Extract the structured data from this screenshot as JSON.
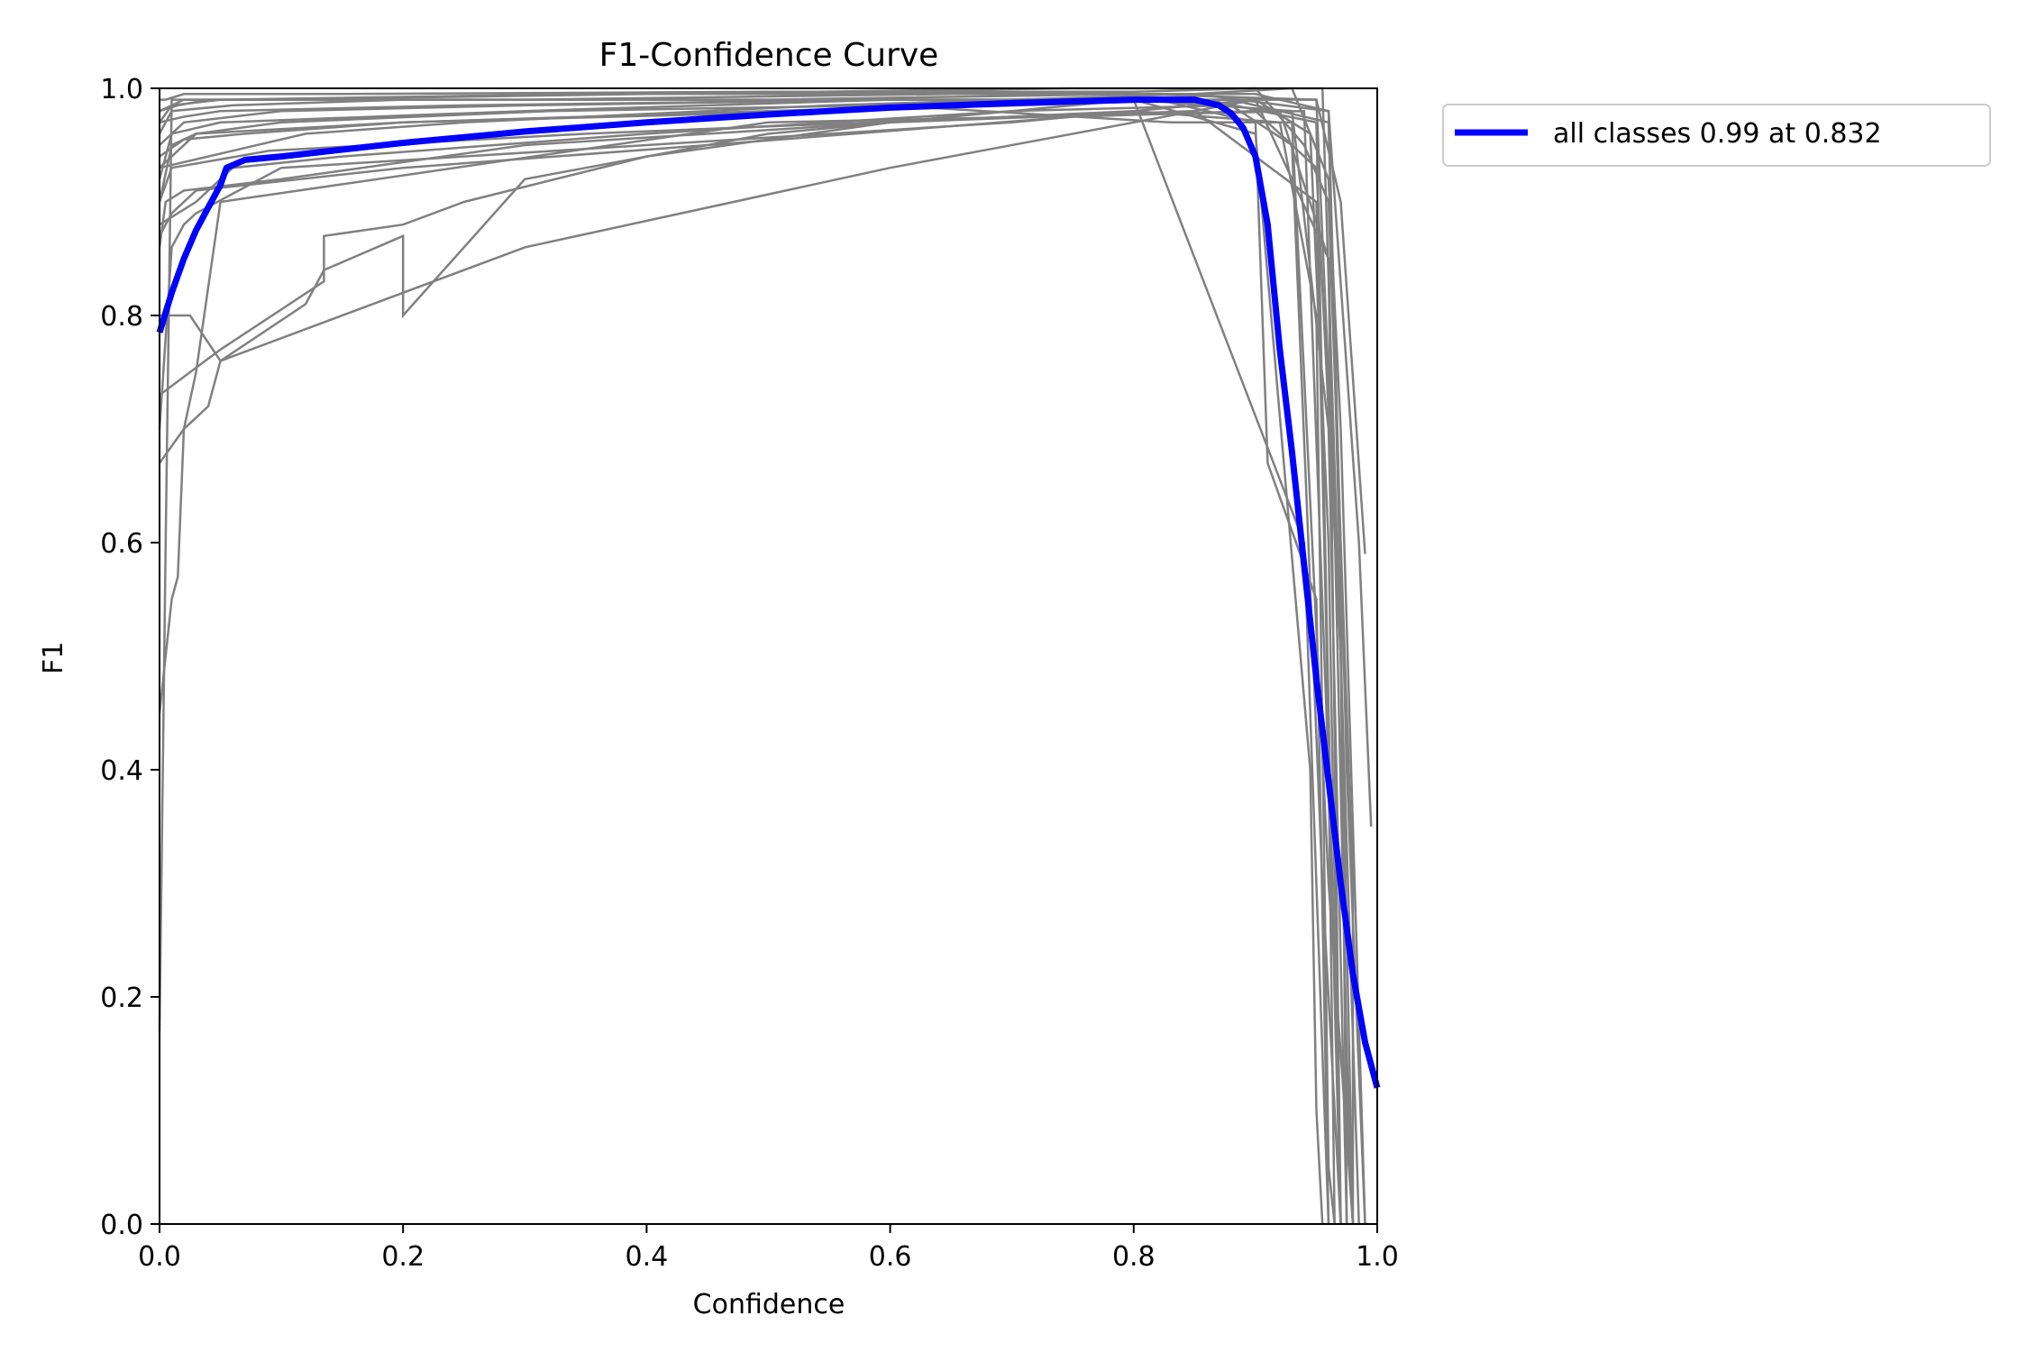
{
  "chart_data": {
    "type": "line",
    "title": "F1-Confidence Curve",
    "xlabel": "Confidence",
    "ylabel": "F1",
    "xlim": [
      0,
      1
    ],
    "ylim": [
      0,
      1
    ],
    "xticks": [
      "0.0",
      "0.2",
      "0.4",
      "0.6",
      "0.8",
      "1.0"
    ],
    "yticks": [
      "0.0",
      "0.2",
      "0.4",
      "0.6",
      "0.8",
      "1.0"
    ],
    "grid": false,
    "legend_position": "outside-top-right",
    "colors": {
      "summary": "#0000ff",
      "classes": "#808080"
    },
    "series": [
      {
        "name": "all classes 0.99 at 0.832",
        "x": [
          0.0,
          0.01,
          0.02,
          0.03,
          0.04,
          0.05,
          0.055,
          0.07,
          0.1,
          0.2,
          0.3,
          0.4,
          0.5,
          0.6,
          0.7,
          0.8,
          0.85,
          0.87,
          0.88,
          0.89,
          0.9,
          0.91,
          0.92,
          0.93,
          0.94,
          0.95,
          0.96,
          0.97,
          0.98,
          0.99,
          1.0
        ],
        "y": [
          0.785,
          0.82,
          0.85,
          0.875,
          0.895,
          0.915,
          0.93,
          0.937,
          0.94,
          0.952,
          0.962,
          0.97,
          0.977,
          0.983,
          0.987,
          0.99,
          0.99,
          0.985,
          0.978,
          0.965,
          0.94,
          0.88,
          0.77,
          0.68,
          0.58,
          0.48,
          0.39,
          0.3,
          0.22,
          0.16,
          0.12
        ]
      }
    ],
    "class_curves": [
      {
        "x": [
          0.0,
          0.005,
          0.01,
          0.95,
          0.97,
          0.975,
          0.98
        ],
        "y": [
          0.17,
          0.6,
          0.99,
          0.99,
          0.5,
          0.1,
          0.0
        ]
      },
      {
        "x": [
          0.0,
          0.01,
          0.015,
          0.02,
          0.03,
          0.05,
          0.5,
          0.94,
          0.96,
          0.965
        ],
        "y": [
          0.45,
          0.55,
          0.57,
          0.7,
          0.75,
          0.9,
          0.97,
          0.98,
          0.4,
          0.0
        ]
      },
      {
        "x": [
          0.0,
          0.02,
          0.04,
          0.05,
          0.3,
          0.6,
          0.9,
          0.945,
          0.96,
          0.97
        ],
        "y": [
          0.67,
          0.7,
          0.72,
          0.76,
          0.86,
          0.93,
          0.99,
          0.96,
          0.6,
          0.0
        ]
      },
      {
        "x": [
          0.0,
          0.025,
          0.05,
          0.12,
          0.135,
          0.2,
          0.2,
          0.3,
          0.5,
          0.8,
          0.94,
          0.96
        ],
        "y": [
          0.8,
          0.8,
          0.76,
          0.81,
          0.84,
          0.87,
          0.8,
          0.92,
          0.96,
          0.99,
          0.6,
          0.0
        ]
      },
      {
        "x": [
          0.0,
          0.05,
          0.135,
          0.135,
          0.2,
          0.25,
          0.4,
          0.6,
          0.85,
          0.95,
          0.965,
          0.97
        ],
        "y": [
          0.73,
          0.77,
          0.83,
          0.87,
          0.88,
          0.9,
          0.94,
          0.97,
          0.98,
          0.9,
          0.2,
          0.0
        ]
      },
      {
        "x": [
          0.0,
          0.01,
          0.02,
          0.03,
          0.1,
          0.4,
          0.7,
          0.9,
          0.96,
          0.975,
          0.98
        ],
        "y": [
          0.7,
          0.86,
          0.88,
          0.89,
          0.93,
          0.95,
          0.97,
          0.99,
          0.85,
          0.15,
          0.0
        ]
      },
      {
        "x": [
          0.0,
          0.005,
          0.02,
          0.1,
          0.3,
          0.6,
          0.8,
          0.92,
          0.95,
          0.96,
          0.965
        ],
        "y": [
          0.86,
          0.9,
          0.91,
          0.92,
          0.95,
          0.97,
          0.98,
          0.97,
          0.8,
          0.05,
          0.0
        ]
      },
      {
        "x": [
          0.0,
          0.01,
          0.03,
          0.2,
          0.5,
          0.8,
          0.93,
          0.96,
          0.975
        ],
        "y": [
          0.9,
          0.95,
          0.96,
          0.97,
          0.98,
          0.99,
          0.98,
          0.7,
          0.0
        ]
      },
      {
        "x": [
          0.0,
          0.01,
          0.05,
          0.3,
          0.6,
          0.82,
          0.9,
          0.91,
          0.92,
          0.95,
          0.96
        ],
        "y": [
          0.92,
          0.96,
          0.97,
          0.98,
          0.99,
          0.99,
          0.97,
          0.67,
          0.64,
          0.55,
          0.0
        ]
      },
      {
        "x": [
          0.0,
          0.02,
          0.1,
          0.3,
          0.6,
          0.8,
          0.9,
          0.945,
          0.95,
          0.955
        ],
        "y": [
          0.95,
          0.97,
          0.98,
          0.985,
          0.99,
          0.99,
          0.96,
          0.4,
          0.1,
          0.0
        ]
      },
      {
        "x": [
          0.0,
          0.01,
          0.06,
          0.2,
          0.5,
          0.8,
          0.95,
          0.97,
          0.99
        ],
        "y": [
          0.96,
          0.98,
          0.985,
          0.99,
          0.99,
          0.995,
          0.99,
          0.9,
          0.59
        ]
      },
      {
        "x": [
          0.0,
          0.01,
          0.05,
          0.35,
          0.7,
          0.9,
          0.96,
          0.985,
          0.995
        ],
        "y": [
          0.97,
          0.985,
          0.99,
          0.995,
          0.995,
          0.995,
          0.98,
          0.6,
          0.35
        ]
      },
      {
        "x": [
          0.0,
          0.02,
          0.08,
          0.4,
          0.75,
          0.9,
          0.94,
          0.96,
          0.98,
          0.98
        ],
        "y": [
          0.98,
          0.99,
          0.99,
          0.995,
          1.0,
          1.0,
          0.95,
          0.9,
          0.3,
          0.0
        ]
      },
      {
        "x": [
          0.0,
          0.03,
          0.06,
          0.15,
          0.4,
          0.7,
          0.88,
          0.93,
          0.955,
          0.97
        ],
        "y": [
          0.88,
          0.9,
          0.93,
          0.94,
          0.96,
          0.98,
          0.985,
          0.95,
          0.3,
          0.0
        ]
      },
      {
        "x": [
          0.0,
          0.04,
          0.12,
          0.25,
          0.55,
          0.85,
          0.96,
          0.975,
          0.99
        ],
        "y": [
          0.93,
          0.94,
          0.96,
          0.97,
          0.985,
          0.995,
          0.98,
          0.4,
          0.0
        ]
      },
      {
        "x": [
          0.0,
          0.01,
          0.03,
          0.2,
          0.45,
          0.75,
          0.9,
          0.95,
          0.97,
          0.98
        ],
        "y": [
          0.87,
          0.89,
          0.91,
          0.93,
          0.95,
          0.975,
          0.98,
          0.93,
          0.5,
          0.0
        ]
      },
      {
        "x": [
          0.0,
          0.02,
          0.05,
          0.25,
          0.6,
          0.88,
          0.96,
          0.97,
          0.975
        ],
        "y": [
          0.97,
          0.975,
          0.98,
          0.985,
          0.99,
          0.99,
          0.97,
          0.55,
          0.0
        ]
      },
      {
        "x": [
          0.0,
          0.015,
          0.04,
          0.3,
          0.65,
          0.85,
          0.93,
          0.96,
          0.97,
          0.99
        ],
        "y": [
          0.98,
          0.985,
          0.99,
          0.99,
          0.995,
          0.995,
          1.0,
          0.92,
          0.7,
          0.0
        ]
      },
      {
        "x": [
          0.0,
          0.01,
          0.09,
          0.35,
          0.7,
          0.92,
          0.96,
          0.97
        ],
        "y": [
          0.9,
          0.93,
          0.945,
          0.96,
          0.975,
          0.98,
          0.85,
          0.0
        ]
      },
      {
        "x": [
          0.0,
          0.005,
          0.02,
          0.15,
          0.5,
          0.8,
          0.9,
          0.955,
          0.985
        ],
        "y": [
          0.99,
          0.99,
          0.995,
          0.995,
          0.997,
          0.997,
          1.0,
          1.0,
          0.0
        ]
      },
      {
        "x": [
          0.0,
          0.03,
          0.1,
          0.32,
          0.6,
          0.83,
          0.93,
          0.96,
          0.98
        ],
        "y": [
          0.93,
          0.96,
          0.97,
          0.98,
          0.985,
          0.97,
          0.97,
          0.3,
          0.0
        ]
      },
      {
        "x": [
          0.0,
          0.02,
          0.07,
          0.2,
          0.55,
          0.86,
          0.95,
          0.962,
          0.97
        ],
        "y": [
          0.94,
          0.955,
          0.96,
          0.97,
          0.98,
          0.99,
          0.97,
          0.35,
          0.0
        ]
      }
    ]
  }
}
